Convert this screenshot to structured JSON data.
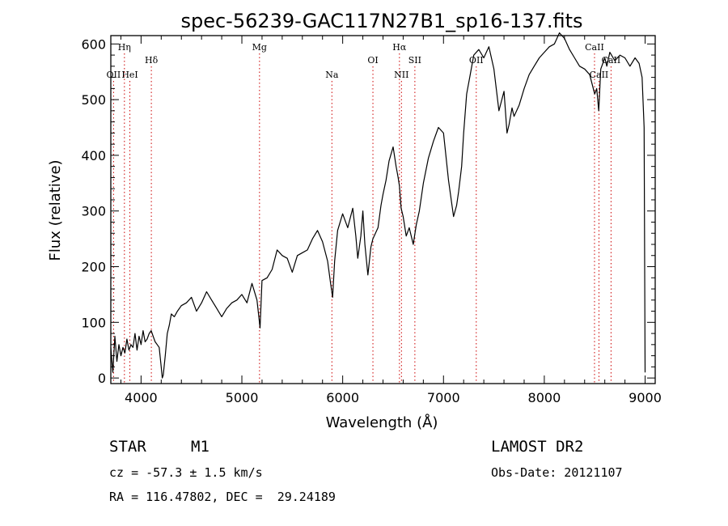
{
  "chart_data": {
    "type": "line",
    "title": "spec-56239-GAC117N27B1_sp16-137.fits",
    "xlabel": "Wavelength (Å)",
    "ylabel": "Flux (relative)",
    "xlim": [
      3700,
      9100
    ],
    "ylim": [
      -10,
      615
    ],
    "xticks": [
      4000,
      5000,
      6000,
      7000,
      8000,
      9000
    ],
    "yticks": [
      0,
      100,
      200,
      300,
      400,
      500,
      600
    ],
    "grid": false,
    "line_color": "#000000",
    "annotation_color": "#cc0000",
    "series": [
      {
        "x": [
          3700,
          3720,
          3740,
          3760,
          3780,
          3800,
          3820,
          3840,
          3860,
          3880,
          3900,
          3920,
          3940,
          3960,
          3980,
          4000,
          4020,
          4040,
          4060,
          4080,
          4100,
          4120,
          4140,
          4160,
          4180,
          4200,
          4210,
          4220,
          4240,
          4260,
          4280,
          4300,
          4330,
          4360,
          4400,
          4450,
          4500,
          4550,
          4600,
          4650,
          4700,
          4750,
          4800,
          4850,
          4900,
          4950,
          5000,
          5050,
          5100,
          5150,
          5180,
          5200,
          5250,
          5300,
          5350,
          5400,
          5450,
          5500,
          5550,
          5600,
          5650,
          5700,
          5750,
          5800,
          5850,
          5880,
          5900,
          5920,
          5950,
          6000,
          6050,
          6100,
          6130,
          6150,
          6180,
          6200,
          6220,
          6250,
          6280,
          6300,
          6350,
          6380,
          6400,
          6430,
          6460,
          6500,
          6530,
          6550,
          6563,
          6580,
          6600,
          6630,
          6660,
          6700,
          6730,
          6760,
          6800,
          6850,
          6900,
          6950,
          7000,
          7050,
          7100,
          7130,
          7150,
          7180,
          7200,
          7230,
          7260,
          7300,
          7350,
          7400,
          7450,
          7500,
          7550,
          7600,
          7630,
          7650,
          7680,
          7700,
          7750,
          7800,
          7850,
          7900,
          7950,
          8000,
          8050,
          8100,
          8150,
          8200,
          8250,
          8300,
          8350,
          8400,
          8450,
          8500,
          8520,
          8540,
          8560,
          8600,
          8620,
          8650,
          8700,
          8750,
          8800,
          8850,
          8900,
          8940,
          8970,
          8990,
          9000
        ],
        "y": [
          55,
          10,
          75,
          30,
          60,
          40,
          55,
          45,
          70,
          50,
          60,
          55,
          80,
          50,
          75,
          60,
          85,
          65,
          70,
          80,
          85,
          75,
          65,
          60,
          55,
          20,
          0,
          5,
          40,
          80,
          95,
          115,
          110,
          120,
          130,
          135,
          145,
          120,
          135,
          155,
          140,
          125,
          110,
          125,
          135,
          140,
          150,
          135,
          170,
          140,
          90,
          175,
          180,
          195,
          230,
          220,
          215,
          190,
          220,
          225,
          230,
          250,
          265,
          245,
          210,
          170,
          145,
          210,
          265,
          295,
          270,
          305,
          255,
          215,
          255,
          300,
          240,
          185,
          235,
          250,
          270,
          310,
          330,
          355,
          390,
          415,
          380,
          360,
          345,
          305,
          290,
          255,
          270,
          240,
          275,
          300,
          350,
          395,
          425,
          450,
          440,
          355,
          290,
          310,
          335,
          380,
          440,
          510,
          540,
          580,
          590,
          575,
          595,
          555,
          480,
          515,
          440,
          455,
          485,
          470,
          490,
          520,
          545,
          560,
          575,
          585,
          595,
          600,
          620,
          610,
          590,
          575,
          560,
          555,
          545,
          510,
          520,
          480,
          555,
          575,
          560,
          585,
          570,
          580,
          575,
          560,
          575,
          565,
          540,
          450,
          10
        ]
      }
    ],
    "lines": [
      {
        "label": "Hη",
        "x": 3835,
        "row": 0
      },
      {
        "label": "OII",
        "x": 3727,
        "row": 2
      },
      {
        "label": "HeI",
        "x": 3889,
        "row": 2
      },
      {
        "label": "Hδ",
        "x": 4102,
        "row": 1
      },
      {
        "label": "Mg",
        "x": 5175,
        "row": 0
      },
      {
        "label": "Na",
        "x": 5893,
        "row": 2
      },
      {
        "label": "OI",
        "x": 6300,
        "row": 1
      },
      {
        "label": "Hα",
        "x": 6563,
        "row": 0
      },
      {
        "label": "NII",
        "x": 6583,
        "row": 2
      },
      {
        "label": "SII",
        "x": 6716,
        "row": 1
      },
      {
        "label": "OII",
        "x": 7325,
        "row": 1
      },
      {
        "label": "CaII",
        "x": 8498,
        "row": 0
      },
      {
        "label": "CaII",
        "x": 8542,
        "row": 2
      },
      {
        "label": "CaII",
        "x": 8662,
        "row": 1
      }
    ]
  },
  "info": {
    "object_type": "STAR",
    "subclass": "M1",
    "survey": "LAMOST DR2",
    "cz": "cz = -57.3 ± 1.5 km/s",
    "obs_date": "Obs-Date: 20121107",
    "coords": "RA = 116.47802, DEC =  29.24189"
  }
}
